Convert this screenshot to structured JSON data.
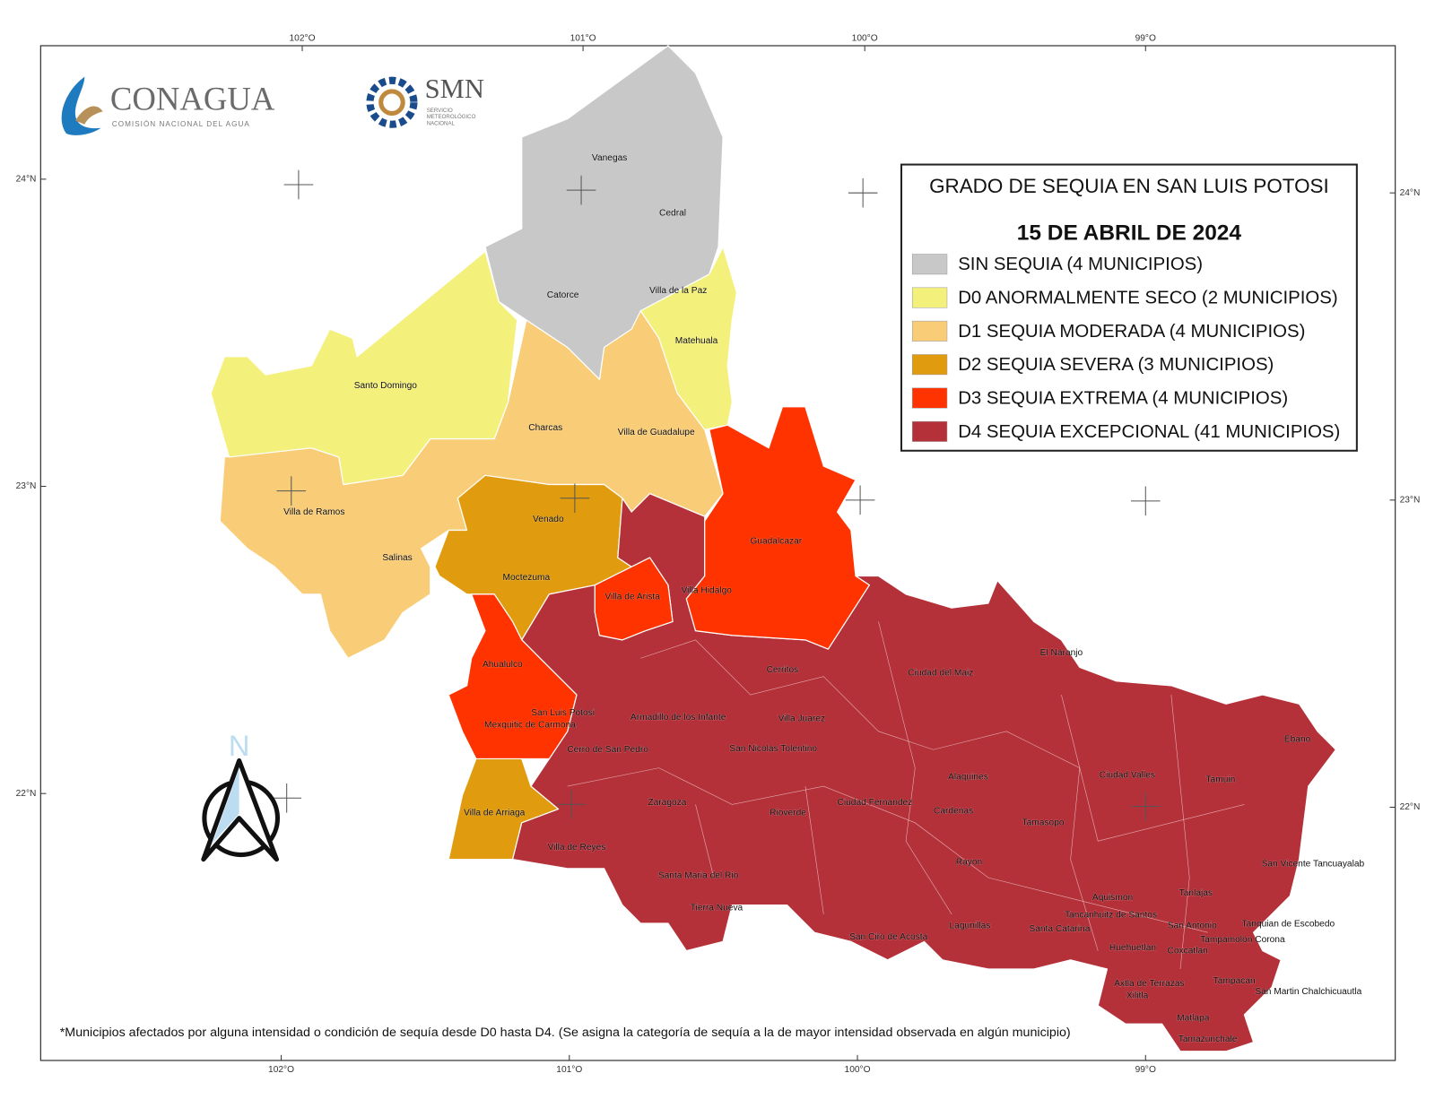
{
  "logos": {
    "conagua": "CONAGUA",
    "conagua_sub": "COMISIÓN NACIONAL DEL AGUA",
    "smn": "SMN",
    "smn_sub": [
      "SERVICIO",
      "METEOROLÓGICO",
      "NACIONAL"
    ]
  },
  "legend": {
    "title": "GRADO DE SEQUIA EN SAN LUIS POTOSI",
    "date": "15 DE ABRIL DE 2024",
    "items": [
      {
        "label": "SIN SEQUIA  (4 MUNICIPIOS)",
        "color": "#c8c8c8"
      },
      {
        "label": "D0  ANORMALMENTE SECO  (2 MUNICIPIOS)",
        "color": "#f3f07c"
      },
      {
        "label": "D1  SEQUIA MODERADA  (4 MUNICIPIOS)",
        "color": "#f9cd78"
      },
      {
        "label": "D2  SEQUIA SEVERA  (3 MUNICIPIOS)",
        "color": "#e09b0f"
      },
      {
        "label": "D3  SEQUIA EXTREMA  (4 MUNICIPIOS)",
        "color": "#ff3300"
      },
      {
        "label": "D4  SEQUIA EXCEPCIONAL (41 MUNICIPIOS)",
        "color": "#b5313a"
      }
    ]
  },
  "axes": {
    "top": [
      "102°O",
      "101°O",
      "100°O",
      "99°O"
    ],
    "bottom": [
      "102°O",
      "101°O",
      "100°O",
      "99°O"
    ],
    "left": [
      "24°N",
      "23°N",
      "22°N"
    ],
    "right": [
      "24°N",
      "23°N",
      "22°N"
    ]
  },
  "north": "N",
  "footnote": "*Municipios afectados por alguna intensidad o condición de sequía desde D0 hasta D4. (Se asigna la categoría de sequía a la de mayor intensidad observada en algún municipio)",
  "municipalities": [
    "Vanegas",
    "Cedral",
    "Catorce",
    "Villa de la Paz",
    "Matehuala",
    "Santo Domingo",
    "Charcas",
    "Villa de Guadalupe",
    "Villa de Ramos",
    "Venado",
    "Guadalcazar",
    "Salinas",
    "Moctezuma",
    "Villa de Arista",
    "Villa Hidalgo",
    "El Naranjo",
    "Ahualulco",
    "Cerritos",
    "Ciudad del Maiz",
    "San Luis Potosi",
    "Armadillo de los Infante",
    "Villa Juarez",
    "Mexquitic de Carmona",
    "Ebano",
    "San Nicolas Tolentino",
    "Cerro de San Pedro",
    "Alaquines",
    "Ciudad Valles",
    "Tamuin",
    "Zaragoza",
    "Ciudad Fernandez",
    "Rioverde",
    "Cardenas",
    "Villa de Arriaga",
    "Tamasopo",
    "Villa de Reyes",
    "Rayon",
    "San Vicente Tancuayalab",
    "Santa Maria del Rio",
    "Tanlajas",
    "Aquismon",
    "Tierra Nueva",
    "Tancanhuitz de Santos",
    "Lagunillas",
    "Tanquian de Escobedo",
    "San Antonio",
    "Santa Catarina",
    "San Ciro de Acosta",
    "Tampamolon Corona",
    "Huehuetlan",
    "Coxcatlan",
    "Axtla de Terrazas",
    "Tampacan",
    "San Martin Chalchicuautla",
    "Xilitla",
    "Matlapa",
    "Tamazunchale"
  ]
}
